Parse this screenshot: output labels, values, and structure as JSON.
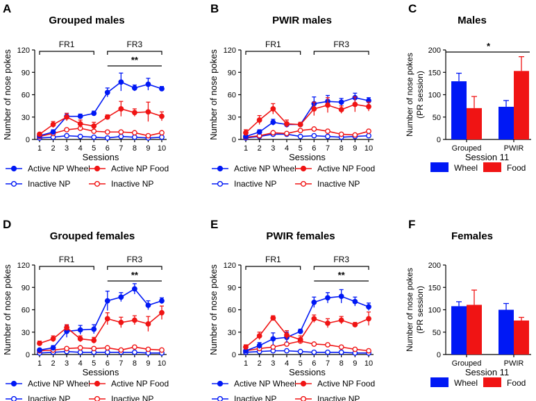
{
  "colors": {
    "wheel": "#0018f5",
    "food": "#f01414",
    "axis": "#000000"
  },
  "sessions": [
    "1",
    "2",
    "3",
    "4",
    "5",
    "6",
    "7",
    "8",
    "9",
    "10"
  ],
  "common": {
    "xlabel": "Sessions",
    "ylabel": "Number of nose pokes",
    "fr1": "FR1",
    "fr3": "FR3",
    "sig": "**",
    "legend": {
      "active_wheel": "Active NP Wheel",
      "active_food": "Active NP Food",
      "inactive_wheel": "Inactive NP",
      "inactive_food": "Inactive NP"
    }
  },
  "bar_common": {
    "ylabel1": "Number of nose pokes",
    "ylabel2": "(PR session)",
    "xlabel": "Session 11",
    "categories": [
      "Grouped",
      "PWIR"
    ],
    "legend": {
      "wheel": "Wheel",
      "food": "Food"
    }
  },
  "chart_data": [
    {
      "panel": "A",
      "type": "line",
      "title": "Grouped males",
      "x": [
        1,
        2,
        3,
        4,
        5,
        6,
        7,
        8,
        9,
        10
      ],
      "ylim": [
        0,
        120
      ],
      "yticks": [
        0,
        30,
        60,
        90,
        120
      ],
      "significance": "**",
      "series": [
        {
          "name": "Active NP Wheel",
          "values": [
            5,
            10,
            31,
            31,
            35,
            63,
            77,
            69,
            74,
            68
          ],
          "err": [
            2,
            3,
            4,
            3,
            3,
            6,
            12,
            4,
            8,
            3
          ]
        },
        {
          "name": "Active NP Food",
          "values": [
            7,
            20,
            30,
            21,
            18,
            30,
            41,
            36,
            37,
            31
          ],
          "err": [
            2,
            4,
            5,
            5,
            5,
            3,
            10,
            5,
            13,
            6
          ]
        },
        {
          "name": "Inactive NP Wheel",
          "values": [
            2,
            3,
            5,
            4,
            3,
            2,
            4,
            3,
            2,
            3
          ],
          "err": [
            1,
            1,
            1,
            1,
            1,
            1,
            1,
            1,
            1,
            1
          ]
        },
        {
          "name": "Inactive NP Food",
          "values": [
            4,
            8,
            13,
            15,
            11,
            10,
            10,
            9,
            5,
            9
          ],
          "err": [
            1,
            2,
            3,
            3,
            2,
            2,
            3,
            2,
            1,
            2
          ]
        }
      ]
    },
    {
      "panel": "B",
      "type": "line",
      "title": "PWIR males",
      "x": [
        1,
        2,
        3,
        4,
        5,
        6,
        7,
        8,
        9,
        10
      ],
      "ylim": [
        0,
        120
      ],
      "yticks": [
        0,
        30,
        60,
        90,
        120
      ],
      "series": [
        {
          "name": "Active NP Wheel",
          "values": [
            4,
            10,
            23,
            20,
            20,
            48,
            51,
            50,
            56,
            52
          ],
          "err": [
            2,
            3,
            4,
            3,
            2,
            9,
            8,
            5,
            6,
            4
          ]
        },
        {
          "name": "Active NP Food",
          "values": [
            9,
            26,
            41,
            21,
            20,
            41,
            46,
            40,
            47,
            44
          ],
          "err": [
            4,
            6,
            7,
            5,
            3,
            9,
            10,
            5,
            10,
            6
          ]
        },
        {
          "name": "Inactive NP Wheel",
          "values": [
            2,
            4,
            7,
            7,
            4,
            5,
            4,
            3,
            4,
            5
          ],
          "err": [
            1,
            1,
            2,
            2,
            1,
            1,
            1,
            1,
            1,
            1
          ]
        },
        {
          "name": "Inactive NP Food",
          "values": [
            3,
            5,
            9,
            8,
            12,
            14,
            11,
            7,
            6,
            11
          ],
          "err": [
            1,
            1,
            2,
            2,
            2,
            3,
            3,
            2,
            1,
            2
          ]
        }
      ]
    },
    {
      "panel": "C",
      "type": "bar",
      "title": "Males",
      "categories": [
        "Grouped",
        "PWIR"
      ],
      "ylim": [
        0,
        200
      ],
      "yticks": [
        0,
        50,
        100,
        150,
        200
      ],
      "xlabel": "Session 11",
      "significance": "*",
      "series": [
        {
          "name": "Wheel",
          "values": [
            130,
            73
          ],
          "err": [
            18,
            14
          ]
        },
        {
          "name": "Food",
          "values": [
            70,
            153
          ],
          "err": [
            26,
            32
          ]
        }
      ]
    },
    {
      "panel": "D",
      "type": "line",
      "title": "Grouped females",
      "x": [
        1,
        2,
        3,
        4,
        5,
        6,
        7,
        8,
        9,
        10
      ],
      "ylim": [
        0,
        120
      ],
      "yticks": [
        0,
        30,
        60,
        90,
        120
      ],
      "significance": "**",
      "series": [
        {
          "name": "Active NP Wheel",
          "values": [
            6,
            9,
            31,
            33,
            34,
            72,
            77,
            88,
            66,
            72
          ],
          "err": [
            2,
            3,
            8,
            6,
            6,
            13,
            6,
            7,
            6,
            4
          ]
        },
        {
          "name": "Active NP Food",
          "values": [
            15,
            21,
            36,
            21,
            19,
            48,
            43,
            46,
            41,
            56
          ],
          "err": [
            3,
            4,
            4,
            4,
            4,
            8,
            7,
            6,
            10,
            9
          ]
        },
        {
          "name": "Inactive NP Wheel",
          "values": [
            2,
            3,
            4,
            3,
            3,
            3,
            3,
            3,
            2,
            2
          ],
          "err": [
            1,
            1,
            1,
            1,
            1,
            1,
            1,
            1,
            1,
            1
          ]
        },
        {
          "name": "Inactive NP Food",
          "values": [
            5,
            6,
            8,
            9,
            8,
            9,
            6,
            10,
            7,
            6
          ],
          "err": [
            1,
            1,
            2,
            2,
            2,
            2,
            2,
            3,
            2,
            1
          ]
        }
      ]
    },
    {
      "panel": "E",
      "type": "line",
      "title": "PWIR females",
      "x": [
        1,
        2,
        3,
        4,
        5,
        6,
        7,
        8,
        9,
        10
      ],
      "ylim": [
        0,
        120
      ],
      "yticks": [
        0,
        30,
        60,
        90,
        120
      ],
      "significance": "**",
      "series": [
        {
          "name": "Active NP Wheel",
          "values": [
            5,
            12,
            21,
            23,
            31,
            70,
            76,
            78,
            71,
            64
          ],
          "err": [
            2,
            4,
            8,
            7,
            3,
            7,
            7,
            9,
            6,
            5
          ]
        },
        {
          "name": "Active NP Food",
          "values": [
            10,
            25,
            49,
            26,
            20,
            48,
            42,
            46,
            40,
            48
          ],
          "err": [
            3,
            5,
            3,
            6,
            5,
            5,
            6,
            5,
            3,
            9
          ]
        },
        {
          "name": "Inactive NP Wheel",
          "values": [
            3,
            4,
            5,
            5,
            4,
            3,
            3,
            3,
            2,
            2
          ],
          "err": [
            1,
            1,
            1,
            1,
            1,
            1,
            1,
            1,
            1,
            1
          ]
        },
        {
          "name": "Inactive NP Food",
          "values": [
            5,
            8,
            10,
            14,
            18,
            14,
            13,
            10,
            7,
            5
          ],
          "err": [
            1,
            2,
            2,
            3,
            4,
            2,
            2,
            2,
            1,
            1
          ]
        }
      ]
    },
    {
      "panel": "F",
      "type": "bar",
      "title": "Females",
      "categories": [
        "Grouped",
        "PWIR"
      ],
      "ylim": [
        0,
        200
      ],
      "yticks": [
        0,
        50,
        100,
        150,
        200
      ],
      "xlabel": "Session 11",
      "series": [
        {
          "name": "Wheel",
          "values": [
            108,
            100
          ],
          "err": [
            10,
            14
          ]
        },
        {
          "name": "Food",
          "values": [
            111,
            76
          ],
          "err": [
            33,
            7
          ]
        }
      ]
    }
  ]
}
